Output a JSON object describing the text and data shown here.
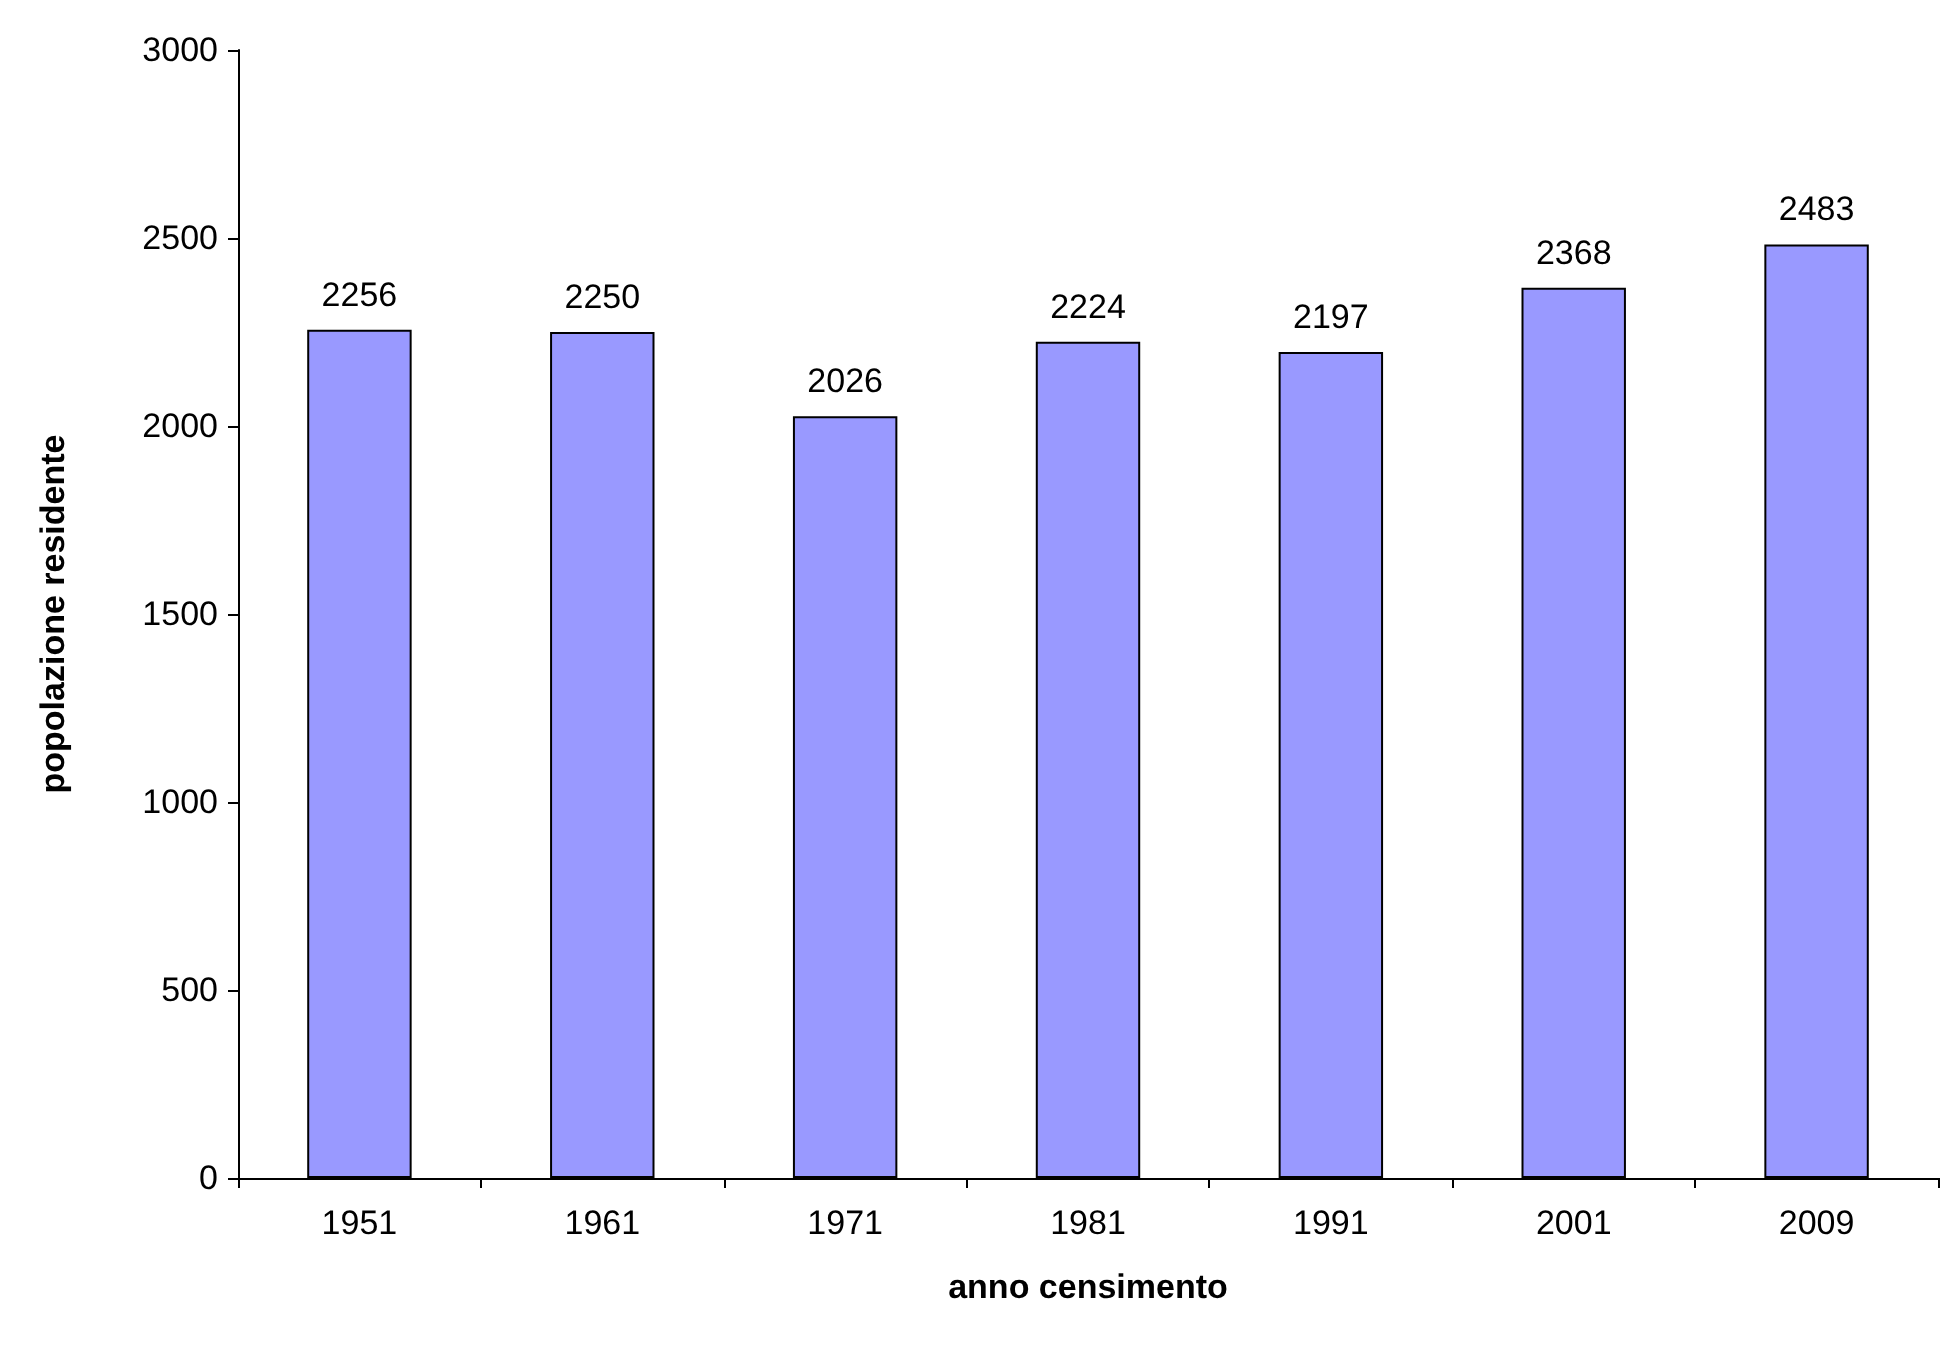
{
  "chart_data": {
    "type": "bar",
    "xlabel": "anno censimento",
    "ylabel": "popolazione residente",
    "categories": [
      "1951",
      "1961",
      "1971",
      "1981",
      "1991",
      "2001",
      "2009"
    ],
    "values": [
      2256,
      2250,
      2026,
      2224,
      2197,
      2368,
      2483
    ],
    "color": "#9999ff",
    "ylim": [
      0,
      3000
    ],
    "yticks": [
      0,
      500,
      1000,
      1500,
      2000,
      2500,
      3000
    ],
    "data_labels": true
  }
}
